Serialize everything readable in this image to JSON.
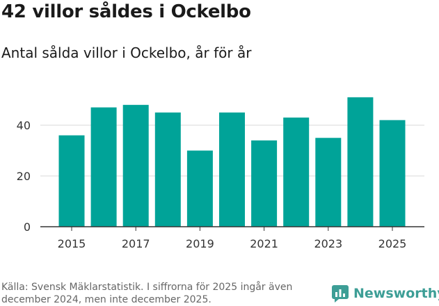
{
  "title": "42 villor såldes i Ockelbo",
  "subtitle": "Antal sålda villor i Ockelbo, år för år",
  "footer": "Källa: Svensk Mäklarstatistik. I siffrorna för 2025 ingår även december 2024, men inte december 2025.",
  "logo": {
    "text": "Newsworthy",
    "icon": "newsworthy-logo-icon"
  },
  "colors": {
    "bar": "#00a398",
    "grid": "#d9d9d9",
    "axis": "#333333",
    "logo": "#3d9e96"
  },
  "chart_data": {
    "type": "bar",
    "categories": [
      "2015",
      "2016",
      "2017",
      "2018",
      "2019",
      "2020",
      "2021",
      "2022",
      "2023",
      "2024",
      "2025"
    ],
    "values": [
      36,
      47,
      48,
      45,
      30,
      45,
      34,
      43,
      35,
      51,
      42
    ],
    "x_tick_labels": [
      "2015",
      "2017",
      "2019",
      "2021",
      "2023",
      "2025"
    ],
    "y_ticks": [
      0,
      20,
      40
    ],
    "ylim": [
      0,
      55
    ],
    "title": "42 villor såldes i Ockelbo",
    "xlabel": "",
    "ylabel": "",
    "grid": true
  }
}
